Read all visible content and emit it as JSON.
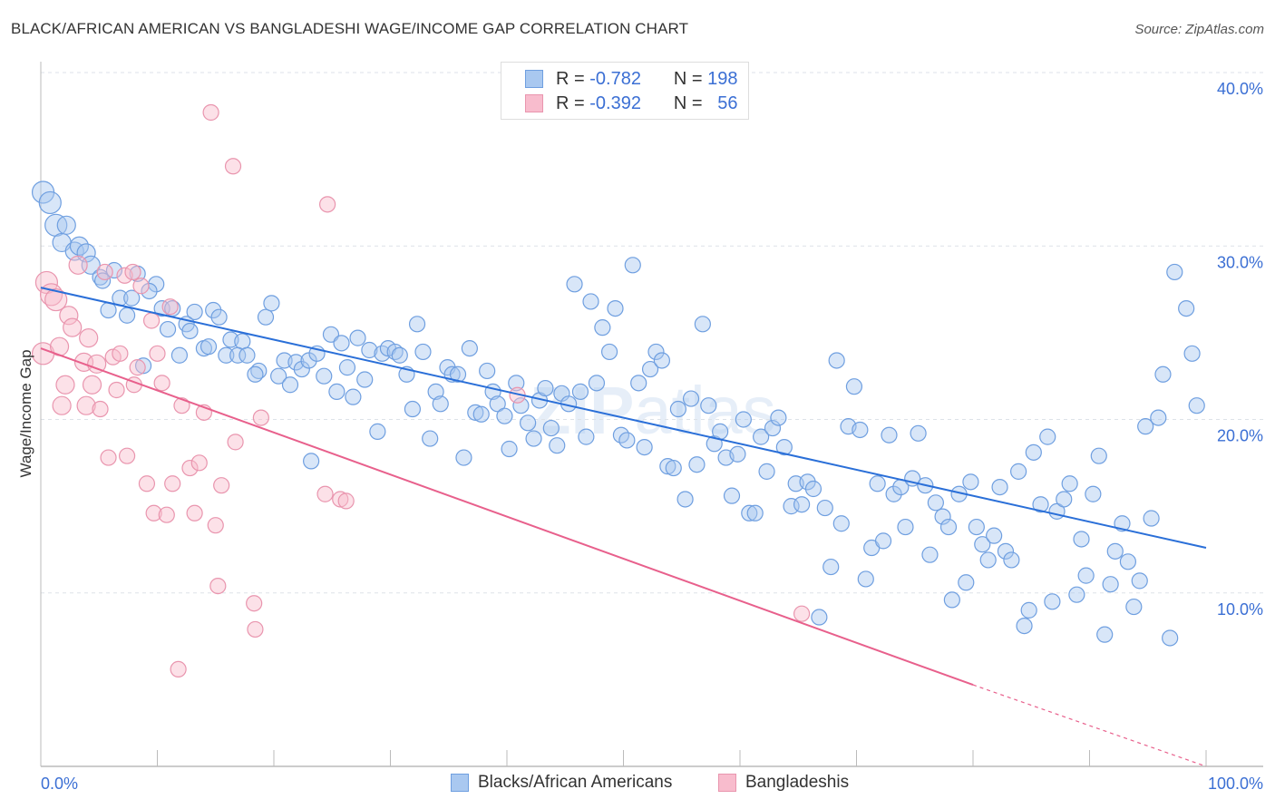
{
  "title": "BLACK/AFRICAN AMERICAN VS BANGLADESHI WAGE/INCOME GAP CORRELATION CHART",
  "source": "Source: ZipAtlas.com",
  "watermark": "ZIPatlas",
  "legend": [
    {
      "r_label": "R =",
      "r": "-0.782",
      "n_label": "N =",
      "n": "198",
      "color": "#a9c8f0",
      "border": "#6f9fe0"
    },
    {
      "r_label": "R =",
      "r": "-0.392",
      "n_label": "N =",
      "n": "56",
      "color": "#f8bccd",
      "border": "#e995ae"
    }
  ],
  "chart_data": {
    "type": "scatter",
    "title": "BLACK/AFRICAN AMERICAN VS BANGLADESHI WAGE/INCOME GAP CORRELATION CHART",
    "xlabel": "",
    "ylabel": "Wage/Income Gap",
    "xlim": [
      0,
      100
    ],
    "ylim": [
      0,
      40
    ],
    "x_tick_labels": [
      "0.0%",
      "100.0%"
    ],
    "y_ticks": [
      10,
      20,
      30,
      40
    ],
    "y_tick_labels": [
      "10.0%",
      "20.0%",
      "30.0%",
      "40.0%"
    ],
    "grid": true,
    "legend_placement": "bottom",
    "series": [
      {
        "name": "Blacks/African Americans",
        "color": "#6f9fe0",
        "fill": "#a9c8f0",
        "line_color": "#2a6fd8",
        "trend": {
          "x0": 0,
          "y0": 27.6,
          "x1": 100,
          "y1": 12.6
        },
        "points": [
          [
            0.2,
            33.1
          ],
          [
            0.8,
            32.5
          ],
          [
            1.3,
            31.2
          ],
          [
            2.2,
            31.2
          ],
          [
            1.8,
            30.2
          ],
          [
            2.9,
            29.7
          ],
          [
            3.3,
            30.0
          ],
          [
            3.9,
            29.6
          ],
          [
            4.3,
            28.9
          ],
          [
            5.1,
            28.2
          ],
          [
            5.3,
            28.0
          ],
          [
            6.3,
            28.6
          ],
          [
            8.3,
            28.4
          ],
          [
            6.8,
            27.0
          ],
          [
            7.8,
            27.0
          ],
          [
            9.9,
            27.8
          ],
          [
            9.3,
            27.4
          ],
          [
            5.8,
            26.3
          ],
          [
            7.4,
            26.0
          ],
          [
            10.4,
            26.4
          ],
          [
            11.3,
            26.4
          ],
          [
            13.2,
            26.2
          ],
          [
            14.8,
            26.3
          ],
          [
            15.3,
            25.9
          ],
          [
            12.5,
            25.5
          ],
          [
            12.8,
            25.1
          ],
          [
            10.9,
            25.2
          ],
          [
            11.9,
            23.7
          ],
          [
            14.0,
            24.1
          ],
          [
            14.4,
            24.2
          ],
          [
            16.3,
            24.6
          ],
          [
            17.3,
            24.5
          ],
          [
            15.9,
            23.7
          ],
          [
            16.9,
            23.7
          ],
          [
            17.7,
            23.7
          ],
          [
            8.8,
            23.1
          ],
          [
            19.3,
            25.9
          ],
          [
            19.8,
            26.7
          ],
          [
            18.7,
            22.8
          ],
          [
            18.4,
            22.6
          ],
          [
            20.4,
            22.5
          ],
          [
            20.9,
            23.4
          ],
          [
            21.4,
            22.0
          ],
          [
            21.9,
            23.3
          ],
          [
            22.4,
            22.9
          ],
          [
            23.0,
            23.4
          ],
          [
            23.7,
            23.8
          ],
          [
            23.2,
            17.6
          ],
          [
            24.3,
            22.5
          ],
          [
            24.9,
            24.9
          ],
          [
            25.4,
            21.6
          ],
          [
            25.8,
            24.4
          ],
          [
            26.3,
            23.0
          ],
          [
            26.8,
            21.3
          ],
          [
            27.2,
            24.7
          ],
          [
            27.8,
            22.3
          ],
          [
            28.2,
            24.0
          ],
          [
            28.9,
            19.3
          ],
          [
            29.3,
            23.8
          ],
          [
            29.8,
            24.1
          ],
          [
            30.4,
            23.9
          ],
          [
            30.8,
            23.7
          ],
          [
            31.4,
            22.6
          ],
          [
            31.9,
            20.6
          ],
          [
            32.3,
            25.5
          ],
          [
            32.8,
            23.9
          ],
          [
            33.4,
            18.9
          ],
          [
            33.9,
            21.6
          ],
          [
            34.3,
            20.9
          ],
          [
            34.9,
            23.0
          ],
          [
            35.3,
            22.6
          ],
          [
            35.8,
            22.6
          ],
          [
            36.3,
            17.8
          ],
          [
            36.8,
            24.1
          ],
          [
            37.3,
            20.4
          ],
          [
            37.8,
            20.3
          ],
          [
            38.3,
            22.8
          ],
          [
            38.8,
            21.6
          ],
          [
            39.2,
            20.9
          ],
          [
            39.8,
            20.2
          ],
          [
            40.2,
            18.3
          ],
          [
            40.8,
            22.1
          ],
          [
            41.2,
            20.8
          ],
          [
            41.8,
            19.8
          ],
          [
            42.3,
            18.9
          ],
          [
            42.8,
            21.1
          ],
          [
            43.3,
            21.8
          ],
          [
            43.8,
            19.5
          ],
          [
            44.3,
            18.5
          ],
          [
            44.7,
            21.5
          ],
          [
            45.3,
            20.9
          ],
          [
            45.8,
            27.8
          ],
          [
            46.3,
            21.6
          ],
          [
            46.8,
            19.0
          ],
          [
            47.2,
            26.8
          ],
          [
            47.7,
            22.1
          ],
          [
            48.2,
            25.3
          ],
          [
            48.8,
            23.9
          ],
          [
            49.3,
            26.4
          ],
          [
            49.8,
            19.1
          ],
          [
            50.3,
            18.8
          ],
          [
            50.8,
            28.9
          ],
          [
            51.3,
            22.1
          ],
          [
            51.8,
            18.4
          ],
          [
            52.3,
            22.9
          ],
          [
            52.8,
            23.9
          ],
          [
            53.3,
            23.4
          ],
          [
            53.8,
            17.3
          ],
          [
            54.3,
            17.2
          ],
          [
            54.7,
            20.6
          ],
          [
            55.3,
            15.4
          ],
          [
            55.8,
            21.2
          ],
          [
            56.3,
            17.4
          ],
          [
            56.8,
            25.5
          ],
          [
            57.3,
            20.8
          ],
          [
            57.8,
            18.6
          ],
          [
            58.3,
            19.3
          ],
          [
            58.8,
            17.8
          ],
          [
            59.3,
            15.6
          ],
          [
            59.8,
            18.0
          ],
          [
            60.3,
            20.0
          ],
          [
            60.8,
            14.6
          ],
          [
            61.3,
            14.6
          ],
          [
            61.8,
            19.0
          ],
          [
            62.3,
            17.0
          ],
          [
            62.8,
            19.5
          ],
          [
            63.3,
            20.1
          ],
          [
            63.8,
            18.4
          ],
          [
            64.4,
            15.0
          ],
          [
            64.8,
            16.3
          ],
          [
            65.3,
            15.1
          ],
          [
            65.8,
            16.4
          ],
          [
            66.3,
            16.0
          ],
          [
            66.8,
            8.6
          ],
          [
            67.3,
            14.9
          ],
          [
            67.8,
            11.5
          ],
          [
            68.3,
            23.4
          ],
          [
            68.7,
            14.0
          ],
          [
            69.3,
            19.6
          ],
          [
            69.8,
            21.9
          ],
          [
            70.3,
            19.4
          ],
          [
            70.8,
            10.8
          ],
          [
            71.3,
            12.6
          ],
          [
            71.8,
            16.3
          ],
          [
            72.3,
            13.0
          ],
          [
            72.8,
            19.1
          ],
          [
            73.2,
            15.7
          ],
          [
            73.8,
            16.1
          ],
          [
            74.2,
            13.8
          ],
          [
            74.8,
            16.6
          ],
          [
            75.3,
            19.2
          ],
          [
            75.9,
            16.2
          ],
          [
            76.3,
            12.2
          ],
          [
            76.8,
            15.2
          ],
          [
            77.4,
            14.4
          ],
          [
            77.9,
            13.8
          ],
          [
            78.2,
            9.6
          ],
          [
            78.8,
            15.7
          ],
          [
            79.4,
            10.6
          ],
          [
            79.8,
            16.4
          ],
          [
            80.3,
            13.8
          ],
          [
            80.8,
            12.8
          ],
          [
            81.3,
            11.9
          ],
          [
            81.8,
            13.3
          ],
          [
            82.3,
            16.1
          ],
          [
            82.8,
            12.4
          ],
          [
            83.3,
            11.9
          ],
          [
            83.9,
            17.0
          ],
          [
            84.4,
            8.1
          ],
          [
            84.8,
            9.0
          ],
          [
            85.2,
            18.1
          ],
          [
            85.8,
            15.1
          ],
          [
            86.4,
            19.0
          ],
          [
            86.8,
            9.5
          ],
          [
            87.2,
            14.7
          ],
          [
            87.8,
            15.4
          ],
          [
            88.3,
            16.3
          ],
          [
            88.9,
            9.9
          ],
          [
            89.3,
            13.1
          ],
          [
            89.7,
            11.0
          ],
          [
            90.3,
            15.7
          ],
          [
            90.8,
            17.9
          ],
          [
            91.3,
            7.6
          ],
          [
            91.8,
            10.5
          ],
          [
            92.2,
            12.4
          ],
          [
            92.8,
            14.0
          ],
          [
            93.3,
            11.8
          ],
          [
            93.8,
            9.2
          ],
          [
            94.3,
            10.7
          ],
          [
            94.8,
            19.6
          ],
          [
            95.3,
            14.3
          ],
          [
            95.9,
            20.1
          ],
          [
            96.3,
            22.6
          ],
          [
            96.9,
            7.4
          ],
          [
            97.3,
            28.5
          ],
          [
            98.3,
            26.4
          ],
          [
            98.8,
            23.8
          ],
          [
            99.2,
            20.8
          ]
        ]
      },
      {
        "name": "Bangladeshis",
        "color": "#e995ae",
        "fill": "#f8bccd",
        "line_color": "#e8608c",
        "trend": {
          "x0": 0,
          "y0": 24.1,
          "x1": 80,
          "y1": 4.7,
          "dashed_to_x": 100,
          "dashed_to_y": 0
        },
        "points": [
          [
            0.2,
            23.8
          ],
          [
            0.5,
            27.9
          ],
          [
            0.9,
            27.2
          ],
          [
            1.3,
            26.9
          ],
          [
            1.6,
            24.2
          ],
          [
            1.8,
            20.8
          ],
          [
            2.1,
            22.0
          ],
          [
            2.4,
            26.0
          ],
          [
            2.7,
            25.3
          ],
          [
            3.2,
            28.9
          ],
          [
            3.7,
            23.3
          ],
          [
            3.9,
            20.8
          ],
          [
            4.1,
            24.7
          ],
          [
            4.4,
            22.0
          ],
          [
            4.8,
            23.2
          ],
          [
            5.1,
            20.6
          ],
          [
            5.5,
            28.5
          ],
          [
            5.8,
            17.8
          ],
          [
            6.2,
            23.6
          ],
          [
            6.5,
            21.7
          ],
          [
            6.8,
            23.8
          ],
          [
            7.2,
            28.3
          ],
          [
            7.4,
            17.9
          ],
          [
            7.9,
            28.5
          ],
          [
            8.0,
            22.0
          ],
          [
            8.3,
            23.0
          ],
          [
            8.6,
            27.7
          ],
          [
            9.1,
            16.3
          ],
          [
            9.5,
            25.7
          ],
          [
            9.7,
            14.6
          ],
          [
            10.0,
            23.8
          ],
          [
            10.4,
            22.1
          ],
          [
            10.8,
            14.5
          ],
          [
            11.1,
            26.5
          ],
          [
            11.3,
            16.3
          ],
          [
            11.8,
            5.6
          ],
          [
            12.1,
            20.8
          ],
          [
            12.8,
            17.2
          ],
          [
            13.2,
            14.6
          ],
          [
            13.6,
            17.5
          ],
          [
            14.0,
            20.4
          ],
          [
            14.6,
            37.7
          ],
          [
            15.0,
            13.9
          ],
          [
            15.2,
            10.4
          ],
          [
            15.5,
            16.2
          ],
          [
            16.5,
            34.6
          ],
          [
            16.7,
            18.7
          ],
          [
            18.3,
            9.4
          ],
          [
            18.4,
            7.9
          ],
          [
            18.9,
            20.1
          ],
          [
            24.4,
            15.7
          ],
          [
            24.6,
            32.4
          ],
          [
            25.7,
            15.4
          ],
          [
            26.2,
            15.3
          ],
          [
            40.9,
            21.4
          ],
          [
            65.3,
            8.8
          ]
        ]
      }
    ]
  }
}
